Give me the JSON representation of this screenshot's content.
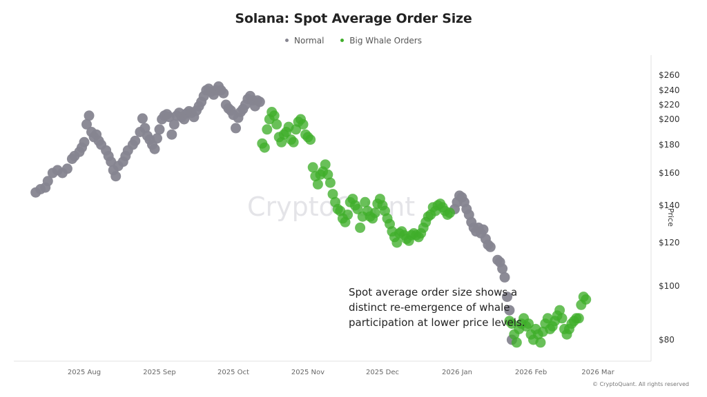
{
  "chart": {
    "title": "Solana: Spot Average Order Size",
    "legend": [
      {
        "label": "Normal",
        "color": "#868590"
      },
      {
        "label": "Big Whale Orders",
        "color": "#3fae2a"
      }
    ],
    "y_axis_label": "Price",
    "watermark": "CryptoQuant",
    "annotation": "Spot average order size shows a distinct re-emergence of whale participation at lower price levels.",
    "copyright": "© CryptoQuant. All rights reserved"
  },
  "chart_data": {
    "type": "scatter",
    "title": "Solana: Spot Average Order Size",
    "xlabel": "",
    "ylabel": "Price",
    "y_ticks": [
      "$80",
      "$100",
      "$120",
      "$140",
      "$160",
      "$180",
      "$200",
      "$220",
      "$240",
      "$260"
    ],
    "x_ticks": [
      "2025 Aug",
      "2025 Sep",
      "2025 Oct",
      "2025 Nov",
      "2025 Dec",
      "2026 Jan",
      "2026 Feb",
      "2026 Mar"
    ],
    "ylim": [
      75,
      262
    ],
    "legend_position": "top",
    "grid": false,
    "series": [
      {
        "name": "Normal",
        "color": "#868590",
        "points": [
          [
            "2025-07-12",
            148
          ],
          [
            "2025-07-14",
            150
          ],
          [
            "2025-07-16",
            151
          ],
          [
            "2025-07-17",
            155
          ],
          [
            "2025-07-19",
            160
          ],
          [
            "2025-07-21",
            162
          ],
          [
            "2025-07-23",
            160
          ],
          [
            "2025-07-25",
            163
          ],
          [
            "2025-07-27",
            170
          ],
          [
            "2025-07-28",
            172
          ],
          [
            "2025-07-30",
            175
          ],
          [
            "2025-07-31",
            178
          ],
          [
            "2025-08-01",
            182
          ],
          [
            "2025-08-02",
            196
          ],
          [
            "2025-08-03",
            205
          ],
          [
            "2025-08-04",
            190
          ],
          [
            "2025-08-05",
            186
          ],
          [
            "2025-08-06",
            188
          ],
          [
            "2025-08-07",
            183
          ],
          [
            "2025-08-08",
            180
          ],
          [
            "2025-08-10",
            176
          ],
          [
            "2025-08-11",
            172
          ],
          [
            "2025-08-12",
            168
          ],
          [
            "2025-08-13",
            162
          ],
          [
            "2025-08-14",
            158
          ],
          [
            "2025-08-15",
            165
          ],
          [
            "2025-08-17",
            168
          ],
          [
            "2025-08-18",
            172
          ],
          [
            "2025-08-19",
            176
          ],
          [
            "2025-08-21",
            180
          ],
          [
            "2025-08-22",
            183
          ],
          [
            "2025-08-24",
            190
          ],
          [
            "2025-08-25",
            201
          ],
          [
            "2025-08-26",
            193
          ],
          [
            "2025-08-27",
            187
          ],
          [
            "2025-08-28",
            184
          ],
          [
            "2025-08-29",
            180
          ],
          [
            "2025-08-30",
            177
          ],
          [
            "2025-08-31",
            185
          ],
          [
            "2025-09-01",
            192
          ],
          [
            "2025-09-02",
            200
          ],
          [
            "2025-09-03",
            205
          ],
          [
            "2025-09-04",
            207
          ],
          [
            "2025-09-05",
            203
          ],
          [
            "2025-09-06",
            188
          ],
          [
            "2025-09-07",
            196
          ],
          [
            "2025-09-08",
            205
          ],
          [
            "2025-09-09",
            209
          ],
          [
            "2025-09-10",
            203
          ],
          [
            "2025-09-11",
            200
          ],
          [
            "2025-09-12",
            208
          ],
          [
            "2025-09-13",
            211
          ],
          [
            "2025-09-14",
            209
          ],
          [
            "2025-09-15",
            203
          ],
          [
            "2025-09-16",
            212
          ],
          [
            "2025-09-17",
            218
          ],
          [
            "2025-09-18",
            224
          ],
          [
            "2025-09-19",
            232
          ],
          [
            "2025-09-20",
            240
          ],
          [
            "2025-09-21",
            242
          ],
          [
            "2025-09-22",
            238
          ],
          [
            "2025-09-23",
            234
          ],
          [
            "2025-09-24",
            240
          ],
          [
            "2025-09-25",
            245
          ],
          [
            "2025-09-26",
            240
          ],
          [
            "2025-09-27",
            236
          ],
          [
            "2025-09-28",
            220
          ],
          [
            "2025-09-29",
            215
          ],
          [
            "2025-09-30",
            212
          ],
          [
            "2025-10-01",
            206
          ],
          [
            "2025-10-02",
            193
          ],
          [
            "2025-10-03",
            202
          ],
          [
            "2025-10-04",
            210
          ],
          [
            "2025-10-05",
            214
          ],
          [
            "2025-10-06",
            220
          ],
          [
            "2025-10-07",
            228
          ],
          [
            "2025-10-08",
            232
          ],
          [
            "2025-10-09",
            226
          ],
          [
            "2025-10-10",
            218
          ],
          [
            "2025-10-11",
            226
          ],
          [
            "2025-10-12",
            224
          ],
          [
            "2025-12-31",
            138
          ],
          [
            "2026-01-01",
            142
          ],
          [
            "2026-01-02",
            146
          ],
          [
            "2026-01-03",
            145
          ],
          [
            "2026-01-04",
            142
          ],
          [
            "2026-01-05",
            138
          ],
          [
            "2026-01-06",
            135
          ],
          [
            "2026-01-07",
            131
          ],
          [
            "2026-01-08",
            128
          ],
          [
            "2026-01-09",
            126
          ],
          [
            "2026-01-10",
            128
          ],
          [
            "2026-01-11",
            125
          ],
          [
            "2026-01-12",
            127
          ],
          [
            "2026-01-13",
            122
          ],
          [
            "2026-01-14",
            119
          ],
          [
            "2026-01-15",
            118
          ],
          [
            "2026-01-18",
            112
          ],
          [
            "2026-01-19",
            111
          ],
          [
            "2026-01-20",
            108
          ],
          [
            "2026-01-21",
            104
          ],
          [
            "2026-01-22",
            96
          ],
          [
            "2026-01-23",
            91
          ],
          [
            "2026-01-24",
            80
          ]
        ]
      },
      {
        "name": "Big Whale Orders",
        "color": "#3fae2a",
        "points": [
          [
            "2025-10-13",
            181
          ],
          [
            "2025-10-14",
            178
          ],
          [
            "2025-10-15",
            192
          ],
          [
            "2025-10-16",
            200
          ],
          [
            "2025-10-17",
            210
          ],
          [
            "2025-10-18",
            205
          ],
          [
            "2025-10-19",
            196
          ],
          [
            "2025-10-20",
            186
          ],
          [
            "2025-10-21",
            182
          ],
          [
            "2025-10-22",
            188
          ],
          [
            "2025-10-23",
            190
          ],
          [
            "2025-10-24",
            194
          ],
          [
            "2025-10-25",
            184
          ],
          [
            "2025-10-26",
            182
          ],
          [
            "2025-10-27",
            192
          ],
          [
            "2025-10-28",
            198
          ],
          [
            "2025-10-29",
            200
          ],
          [
            "2025-10-30",
            196
          ],
          [
            "2025-10-31",
            188
          ],
          [
            "2025-11-01",
            186
          ],
          [
            "2025-11-02",
            184
          ],
          [
            "2025-11-03",
            164
          ],
          [
            "2025-11-04",
            158
          ],
          [
            "2025-11-05",
            153
          ],
          [
            "2025-11-06",
            159
          ],
          [
            "2025-11-07",
            161
          ],
          [
            "2025-11-08",
            166
          ],
          [
            "2025-11-09",
            159
          ],
          [
            "2025-11-10",
            154
          ],
          [
            "2025-11-11",
            147
          ],
          [
            "2025-11-12",
            142
          ],
          [
            "2025-11-13",
            138
          ],
          [
            "2025-11-14",
            137
          ],
          [
            "2025-11-15",
            133
          ],
          [
            "2025-11-16",
            131
          ],
          [
            "2025-11-17",
            135
          ],
          [
            "2025-11-18",
            142
          ],
          [
            "2025-11-19",
            144
          ],
          [
            "2025-11-20",
            140
          ],
          [
            "2025-11-21",
            138
          ],
          [
            "2025-11-22",
            128
          ],
          [
            "2025-11-23",
            134
          ],
          [
            "2025-11-24",
            142
          ],
          [
            "2025-11-25",
            137
          ],
          [
            "2025-11-26",
            134
          ],
          [
            "2025-11-27",
            133
          ],
          [
            "2025-11-28",
            136
          ],
          [
            "2025-11-29",
            141
          ],
          [
            "2025-11-30",
            144
          ],
          [
            "2025-12-01",
            140
          ],
          [
            "2025-12-02",
            137
          ],
          [
            "2025-12-03",
            133
          ],
          [
            "2025-12-04",
            130
          ],
          [
            "2025-12-05",
            126
          ],
          [
            "2025-12-06",
            123
          ],
          [
            "2025-12-07",
            120
          ],
          [
            "2025-12-08",
            125
          ],
          [
            "2025-12-09",
            126
          ],
          [
            "2025-12-10",
            124
          ],
          [
            "2025-12-11",
            122
          ],
          [
            "2025-12-12",
            121
          ],
          [
            "2025-12-13",
            124
          ],
          [
            "2025-12-14",
            125
          ],
          [
            "2025-12-15",
            124
          ],
          [
            "2025-12-16",
            123
          ],
          [
            "2025-12-17",
            125
          ],
          [
            "2025-12-18",
            128
          ],
          [
            "2025-12-19",
            131
          ],
          [
            "2025-12-20",
            134
          ],
          [
            "2025-12-21",
            135
          ],
          [
            "2025-12-22",
            139
          ],
          [
            "2025-12-23",
            137
          ],
          [
            "2025-12-24",
            140
          ],
          [
            "2025-12-25",
            141
          ],
          [
            "2025-12-26",
            139
          ],
          [
            "2025-12-27",
            137
          ],
          [
            "2025-12-28",
            135
          ],
          [
            "2025-12-29",
            136
          ],
          [
            "2026-01-23",
            87
          ],
          [
            "2026-01-24",
            86
          ],
          [
            "2026-01-25",
            82
          ],
          [
            "2026-01-26",
            79
          ],
          [
            "2026-01-27",
            84
          ],
          [
            "2026-01-28",
            86
          ],
          [
            "2026-01-29",
            88
          ],
          [
            "2026-01-30",
            85
          ],
          [
            "2026-01-31",
            86
          ],
          [
            "2026-02-01",
            82
          ],
          [
            "2026-02-02",
            80
          ],
          [
            "2026-02-03",
            84
          ],
          [
            "2026-02-04",
            82
          ],
          [
            "2026-02-05",
            79
          ],
          [
            "2026-02-06",
            83
          ],
          [
            "2026-02-07",
            86
          ],
          [
            "2026-02-08",
            88
          ],
          [
            "2026-02-09",
            84
          ],
          [
            "2026-02-10",
            85
          ],
          [
            "2026-02-11",
            87
          ],
          [
            "2026-02-12",
            89
          ],
          [
            "2026-02-13",
            91
          ],
          [
            "2026-02-14",
            88
          ],
          [
            "2026-02-15",
            84
          ],
          [
            "2026-02-16",
            82
          ],
          [
            "2026-02-17",
            84
          ],
          [
            "2026-02-18",
            86
          ],
          [
            "2026-02-19",
            87
          ],
          [
            "2026-02-20",
            88
          ],
          [
            "2026-02-21",
            88
          ],
          [
            "2026-02-22",
            93
          ],
          [
            "2026-02-23",
            96
          ],
          [
            "2026-02-24",
            95
          ]
        ]
      }
    ]
  }
}
